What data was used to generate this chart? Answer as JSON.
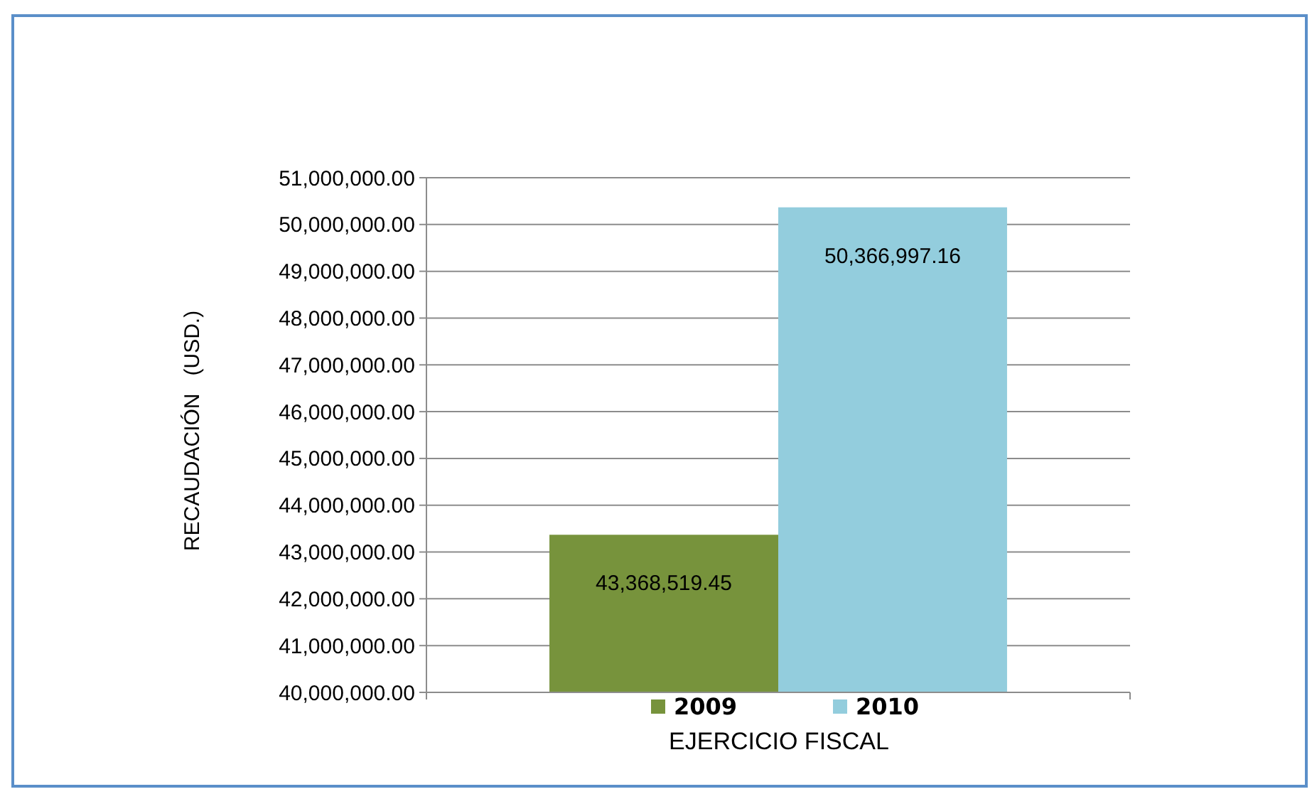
{
  "chart_data": {
    "type": "bar",
    "xlabel": "EJERCICIO FISCAL",
    "ylabel": "RECAUDACIÓN   (USD.)",
    "categories": [
      null
    ],
    "series": [
      {
        "name": "2009",
        "color": "#77933c",
        "values": [
          43368519.45
        ],
        "value_labels": [
          "43,368,519.45"
        ]
      },
      {
        "name": "2010",
        "color": "#93cddd",
        "values": [
          50366997.16
        ],
        "value_labels": [
          "50,366,997.16"
        ]
      }
    ],
    "ylim": [
      40000000,
      51000000
    ],
    "yticks": [
      {
        "value": 40000000,
        "label": "40,000,000.00"
      },
      {
        "value": 41000000,
        "label": "41,000,000.00"
      },
      {
        "value": 42000000,
        "label": "42,000,000.00"
      },
      {
        "value": 43000000,
        "label": "43,000,000.00"
      },
      {
        "value": 44000000,
        "label": "44,000,000.00"
      },
      {
        "value": 45000000,
        "label": "45,000,000.00"
      },
      {
        "value": 46000000,
        "label": "46,000,000.00"
      },
      {
        "value": 47000000,
        "label": "47,000,000.00"
      },
      {
        "value": 48000000,
        "label": "48,000,000.00"
      },
      {
        "value": 49000000,
        "label": "49,000,000.00"
      },
      {
        "value": 50000000,
        "label": "50,000,000.00"
      },
      {
        "value": 51000000,
        "label": "51,000,000.00"
      }
    ],
    "grid": "y",
    "legend": "bottom"
  }
}
